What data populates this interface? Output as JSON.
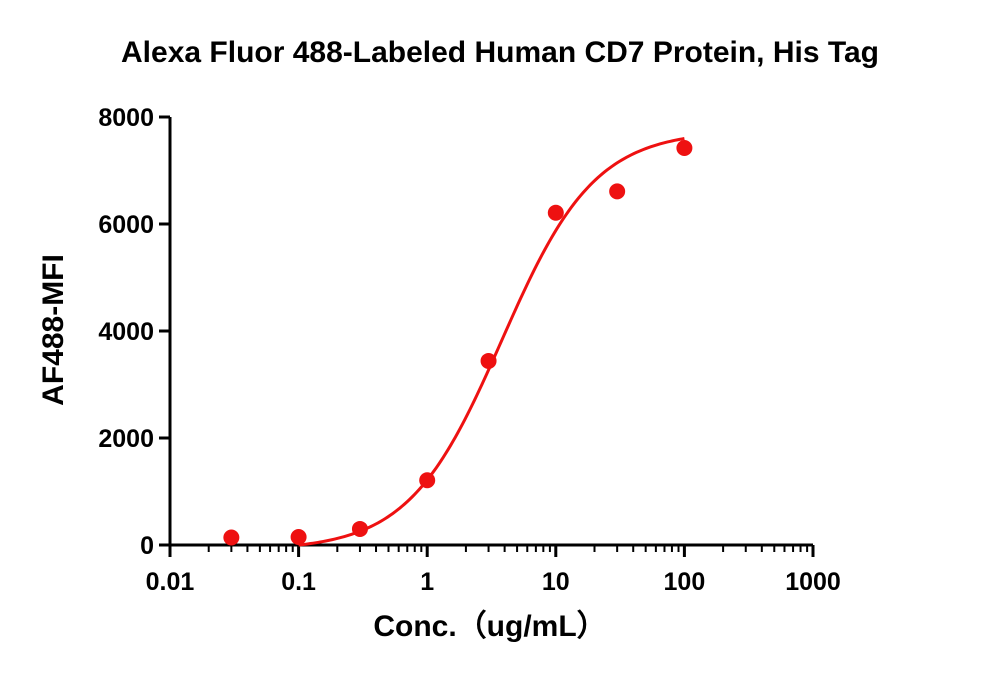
{
  "chart_data": {
    "type": "scatter",
    "title": "Alexa Fluor 488-Labeled Human CD7 Protein, His Tag",
    "xlabel": "Conc.（ug/mL）",
    "ylabel": "AF488-MFI",
    "x_scale": "log",
    "xlim": [
      0.01,
      1000
    ],
    "ylim": [
      0,
      8000
    ],
    "x_ticks": [
      0.01,
      0.1,
      1,
      10,
      100,
      1000
    ],
    "x_tick_labels": [
      "0.01",
      "0.1",
      "1",
      "10",
      "100",
      "1000"
    ],
    "y_ticks": [
      0,
      2000,
      4000,
      6000,
      8000
    ],
    "y_tick_labels": [
      "0",
      "2000",
      "4000",
      "6000",
      "8000"
    ],
    "grid": false,
    "series": [
      {
        "points": [
          {
            "x": 0.03,
            "y": 140
          },
          {
            "x": 0.1,
            "y": 150
          },
          {
            "x": 0.3,
            "y": 300
          },
          {
            "x": 1,
            "y": 1210
          },
          {
            "x": 3,
            "y": 3440
          },
          {
            "x": 10,
            "y": 6210
          },
          {
            "x": 30,
            "y": 6610
          },
          {
            "x": 100,
            "y": 7420
          }
        ],
        "fit": {
          "model": "4PL",
          "bottom": -100,
          "top": 7750,
          "ec50": 3.8,
          "hill": 1.2,
          "x_range": [
            0.1,
            100
          ]
        }
      }
    ],
    "colors": {
      "series": "#ee1111",
      "axis": "#000000"
    }
  }
}
